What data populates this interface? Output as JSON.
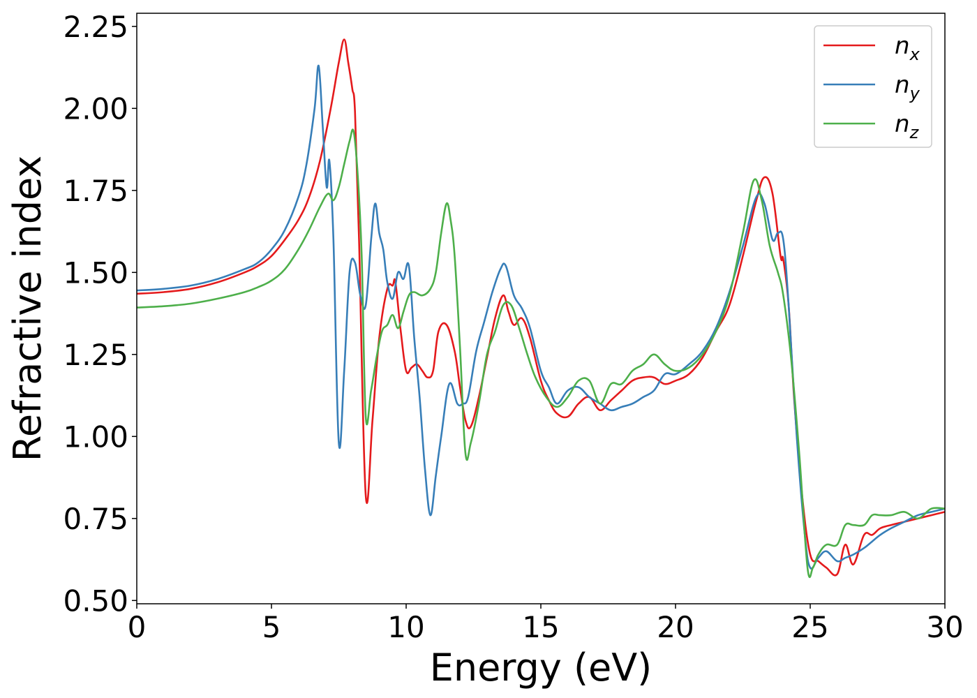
{
  "chart_data": {
    "type": "line",
    "xlabel": "Energy (eV)",
    "ylabel": "Refractive index",
    "xlim": [
      0,
      30
    ],
    "ylim": [
      0.49,
      2.29
    ],
    "xticks": [
      "0",
      "5",
      "10",
      "15",
      "20",
      "25",
      "30"
    ],
    "yticks": [
      "0.50",
      "0.75",
      "1.00",
      "1.25",
      "1.50",
      "1.75",
      "2.00",
      "2.25"
    ],
    "grid": false,
    "legend_position": "top-right",
    "series": [
      {
        "name": "n",
        "subscript": "x",
        "color": "#e41a1c",
        "x": [
          0,
          1,
          2,
          3,
          4,
          4.5,
          5,
          5.5,
          6,
          6.4,
          6.8,
          7.2,
          7.5,
          7.7,
          7.85,
          8.0,
          8.1,
          8.25,
          8.5,
          8.75,
          9.0,
          9.3,
          9.5,
          9.6,
          9.8,
          10.0,
          10.2,
          10.4,
          10.6,
          10.8,
          11.0,
          11.2,
          11.5,
          11.8,
          12.0,
          12.2,
          12.4,
          12.7,
          13.0,
          13.3,
          13.6,
          13.8,
          14.0,
          14.3,
          14.6,
          15.0,
          15.3,
          15.6,
          16.0,
          16.4,
          16.8,
          17.2,
          17.6,
          18.0,
          18.4,
          18.8,
          19.2,
          19.6,
          20.0,
          20.5,
          21.0,
          21.5,
          22.0,
          22.5,
          23.0,
          23.3,
          23.6,
          23.9,
          24.0,
          24.2,
          24.4,
          24.7,
          25.0,
          25.3,
          25.6,
          26.0,
          26.3,
          26.6,
          27.0,
          27.3,
          27.6,
          28.0,
          28.5,
          29.0,
          29.5,
          30.0
        ],
        "values": [
          1.435,
          1.44,
          1.45,
          1.47,
          1.5,
          1.52,
          1.55,
          1.6,
          1.66,
          1.73,
          1.84,
          2.0,
          2.14,
          2.21,
          2.14,
          2.06,
          1.99,
          1.6,
          0.82,
          1.05,
          1.3,
          1.45,
          1.46,
          1.47,
          1.32,
          1.2,
          1.21,
          1.22,
          1.2,
          1.18,
          1.2,
          1.32,
          1.34,
          1.26,
          1.15,
          1.05,
          1.03,
          1.12,
          1.24,
          1.36,
          1.43,
          1.38,
          1.34,
          1.36,
          1.3,
          1.17,
          1.11,
          1.07,
          1.06,
          1.1,
          1.12,
          1.08,
          1.11,
          1.14,
          1.17,
          1.18,
          1.18,
          1.16,
          1.17,
          1.19,
          1.24,
          1.32,
          1.4,
          1.55,
          1.72,
          1.79,
          1.74,
          1.55,
          1.54,
          1.4,
          1.12,
          0.82,
          0.64,
          0.62,
          0.6,
          0.58,
          0.67,
          0.61,
          0.7,
          0.7,
          0.72,
          0.73,
          0.74,
          0.75,
          0.76,
          0.77
        ]
      },
      {
        "name": "n",
        "subscript": "y",
        "color": "#377eb8",
        "x": [
          0,
          1,
          2,
          3,
          4,
          4.5,
          5,
          5.5,
          6,
          6.3,
          6.6,
          6.75,
          6.9,
          7.05,
          7.15,
          7.3,
          7.5,
          7.7,
          7.9,
          8.1,
          8.3,
          8.5,
          8.7,
          8.85,
          9.0,
          9.15,
          9.3,
          9.5,
          9.7,
          9.9,
          10.1,
          10.3,
          10.5,
          10.7,
          10.9,
          11.1,
          11.3,
          11.6,
          11.9,
          12.1,
          12.3,
          12.6,
          12.9,
          13.2,
          13.5,
          13.7,
          14.0,
          14.3,
          14.6,
          15.0,
          15.3,
          15.6,
          16.0,
          16.4,
          16.8,
          17.2,
          17.6,
          18.0,
          18.4,
          18.8,
          19.2,
          19.6,
          20.0,
          20.5,
          21.0,
          21.5,
          22.0,
          22.5,
          23.0,
          23.3,
          23.6,
          23.8,
          24.0,
          24.2,
          24.5,
          24.8,
          25.0,
          25.3,
          25.6,
          26.0,
          26.3,
          26.6,
          27.0,
          27.3,
          27.6,
          28.0,
          28.5,
          29.0,
          29.5,
          30.0
        ],
        "values": [
          1.445,
          1.45,
          1.46,
          1.48,
          1.51,
          1.53,
          1.57,
          1.63,
          1.73,
          1.83,
          2.0,
          2.13,
          1.95,
          1.76,
          1.84,
          1.6,
          0.98,
          1.2,
          1.5,
          1.53,
          1.43,
          1.4,
          1.6,
          1.71,
          1.62,
          1.57,
          1.47,
          1.42,
          1.5,
          1.48,
          1.52,
          1.3,
          1.12,
          0.9,
          0.76,
          0.88,
          1.0,
          1.16,
          1.1,
          1.1,
          1.12,
          1.26,
          1.35,
          1.44,
          1.51,
          1.52,
          1.43,
          1.39,
          1.33,
          1.2,
          1.15,
          1.1,
          1.14,
          1.15,
          1.12,
          1.1,
          1.08,
          1.09,
          1.1,
          1.12,
          1.14,
          1.19,
          1.19,
          1.22,
          1.26,
          1.33,
          1.44,
          1.58,
          1.73,
          1.71,
          1.6,
          1.62,
          1.6,
          1.4,
          1.0,
          0.7,
          0.6,
          0.63,
          0.65,
          0.62,
          0.63,
          0.64,
          0.66,
          0.68,
          0.7,
          0.72,
          0.74,
          0.76,
          0.77,
          0.78
        ]
      },
      {
        "name": "n",
        "subscript": "z",
        "color": "#4daf4a",
        "x": [
          0,
          1,
          2,
          3,
          4,
          4.5,
          5,
          5.5,
          6,
          6.4,
          6.8,
          7.1,
          7.3,
          7.5,
          7.7,
          7.9,
          8.05,
          8.2,
          8.35,
          8.5,
          8.7,
          8.9,
          9.1,
          9.3,
          9.5,
          9.7,
          9.9,
          10.1,
          10.3,
          10.6,
          10.9,
          11.1,
          11.3,
          11.5,
          11.65,
          11.8,
          12.0,
          12.2,
          12.4,
          12.7,
          13.0,
          13.3,
          13.6,
          13.9,
          14.2,
          14.5,
          14.8,
          15.2,
          15.6,
          16.0,
          16.4,
          16.8,
          17.2,
          17.6,
          18.0,
          18.4,
          18.8,
          19.2,
          19.6,
          20.0,
          20.5,
          21.0,
          21.5,
          22.0,
          22.5,
          22.9,
          23.2,
          23.5,
          23.8,
          24.0,
          24.3,
          24.6,
          24.9,
          25.1,
          25.3,
          25.6,
          26.0,
          26.3,
          26.6,
          27.0,
          27.3,
          27.6,
          28.0,
          28.5,
          29.0,
          29.5,
          30.0
        ],
        "values": [
          1.393,
          1.397,
          1.405,
          1.42,
          1.44,
          1.455,
          1.475,
          1.51,
          1.57,
          1.63,
          1.7,
          1.74,
          1.72,
          1.76,
          1.83,
          1.9,
          1.93,
          1.8,
          1.55,
          1.06,
          1.14,
          1.24,
          1.32,
          1.34,
          1.37,
          1.33,
          1.38,
          1.43,
          1.44,
          1.43,
          1.45,
          1.5,
          1.62,
          1.71,
          1.66,
          1.55,
          1.27,
          0.95,
          0.98,
          1.1,
          1.25,
          1.32,
          1.4,
          1.4,
          1.33,
          1.25,
          1.18,
          1.12,
          1.09,
          1.12,
          1.17,
          1.17,
          1.1,
          1.16,
          1.16,
          1.2,
          1.22,
          1.25,
          1.22,
          1.2,
          1.21,
          1.25,
          1.32,
          1.43,
          1.62,
          1.78,
          1.72,
          1.58,
          1.5,
          1.43,
          1.23,
          0.94,
          0.6,
          0.6,
          0.64,
          0.67,
          0.67,
          0.73,
          0.73,
          0.73,
          0.76,
          0.76,
          0.76,
          0.77,
          0.75,
          0.78,
          0.78
        ]
      }
    ]
  }
}
